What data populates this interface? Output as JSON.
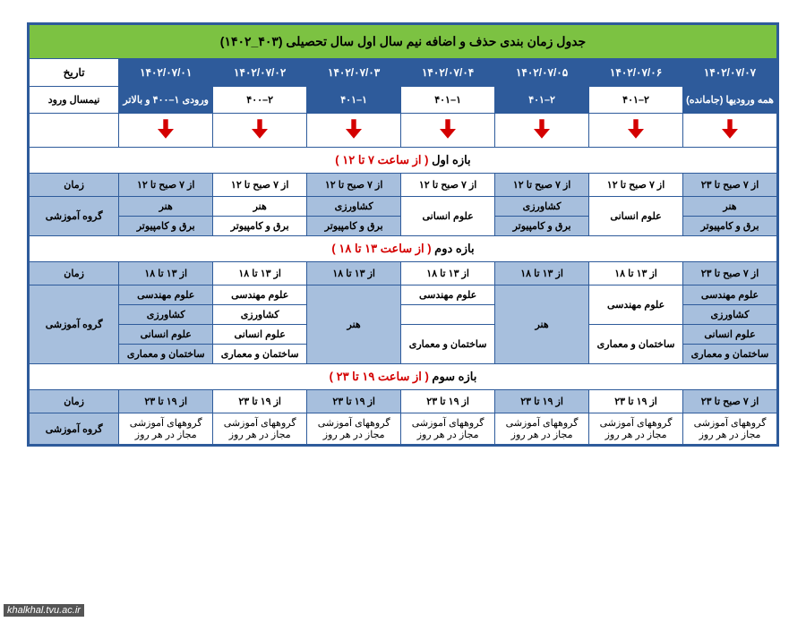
{
  "title": "جدول زمان بندی حذف و اضافه نیم سال اول سال تحصیلی (۴۰۳_۱۴۰۲)",
  "labels": {
    "date": "تاریخ",
    "entry": "نیمسال ورود",
    "time": "زمان",
    "group": "گروه آموزشی"
  },
  "dates": [
    "۱۴۰۲/۰۷/۰۱",
    "۱۴۰۲/۰۷/۰۲",
    "۱۴۰۲/۰۷/۰۳",
    "۱۴۰۲/۰۷/۰۴",
    "۱۴۰۲/۰۷/۰۵",
    "۱۴۰۲/۰۷/۰۶",
    "۱۴۰۲/۰۷/۰۷"
  ],
  "entries": [
    {
      "text": "ورودی ۱–۴۰۰ و بالاتر",
      "style": "dark"
    },
    {
      "text": "۲–۴۰۰",
      "style": "light"
    },
    {
      "text": "۱–۴۰۱",
      "style": "dark"
    },
    {
      "text": "۱–۴۰۱",
      "style": "light"
    },
    {
      "text": "۲–۴۰۱",
      "style": "dark"
    },
    {
      "text": "۲–۴۰۱",
      "style": "light"
    },
    {
      "text": "همه ورودیها (جامانده)",
      "style": "dark"
    }
  ],
  "sections": [
    {
      "header_pre": "بازه اول",
      "header_post": "( از ساعت ۷ تا ۱۲ )",
      "times": [
        "از ۷ صبح تا ۱۲",
        "از ۷ صبح تا ۱۲",
        "از ۷ صبح تا ۱۲",
        "از ۷ صبح تا ۱۲",
        "از ۷ صبح تا ۱۲",
        "از ۷ صبح تا ۱۲",
        "از ۷ صبح تا ۲۳"
      ],
      "rows": 2,
      "cells": [
        [
          {
            "t": "هنر",
            "c": "blue"
          },
          {
            "t": "هنر",
            "c": "white"
          },
          {
            "t": "کشاورزی",
            "c": "blue"
          },
          {
            "t": "علوم انسانی",
            "c": "white",
            "rs": 2
          },
          {
            "t": "کشاورزی",
            "c": "blue"
          },
          {
            "t": "علوم انسانی",
            "c": "white",
            "rs": 2
          },
          {
            "t": "هنر",
            "c": "blue"
          }
        ],
        [
          {
            "t": "برق و کامپیوتر",
            "c": "blue"
          },
          {
            "t": "برق و کامپیوتر",
            "c": "white"
          },
          {
            "t": "برق و کامپیوتر",
            "c": "blue"
          },
          {
            "t": "برق و کامپیوتر",
            "c": "blue"
          },
          {
            "t": "برق و کامپیوتر",
            "c": "blue"
          }
        ]
      ]
    },
    {
      "header_pre": "بازه دوم",
      "header_post": "( از ساعت ۱۳ تا ۱۸ )",
      "times": [
        "از ۱۳ تا ۱۸",
        "از ۱۳ تا ۱۸",
        "از ۱۳ تا ۱۸",
        "از ۱۳ تا ۱۸",
        "از ۱۳ تا ۱۸",
        "از ۱۳ تا ۱۸",
        "از ۷ صبح تا ۲۳"
      ],
      "rows": 4,
      "cells": [
        [
          {
            "t": "علوم مهندسی",
            "c": "blue"
          },
          {
            "t": "علوم مهندسی",
            "c": "white"
          },
          {
            "t": "هنر",
            "c": "blue",
            "rs": 4
          },
          {
            "t": "علوم مهندسی",
            "c": "white"
          },
          {
            "t": "هنر",
            "c": "blue",
            "rs": 4
          },
          {
            "t": "علوم مهندسی",
            "c": "white",
            "rs": 2
          },
          {
            "t": "علوم مهندسی",
            "c": "blue"
          }
        ],
        [
          {
            "t": "کشاورزی",
            "c": "blue"
          },
          {
            "t": "کشاورزی",
            "c": "white"
          },
          {
            "t": "",
            "c": "white"
          },
          {
            "t": "کشاورزی",
            "c": "blue"
          }
        ],
        [
          {
            "t": "علوم انسانی",
            "c": "blue"
          },
          {
            "t": "علوم انسانی",
            "c": "white"
          },
          {
            "t": "ساختمان و معماری",
            "c": "white",
            "rs": 2
          },
          {
            "t": "ساختمان و معماری",
            "c": "white",
            "rs": 2
          },
          {
            "t": "علوم انسانی",
            "c": "blue"
          }
        ],
        [
          {
            "t": "ساختمان و معماری",
            "c": "blue"
          },
          {
            "t": "ساختمان و معماری",
            "c": "white"
          },
          {
            "t": "ساختمان و معماری",
            "c": "blue"
          }
        ]
      ]
    },
    {
      "header_pre": "بازه سوم",
      "header_post": "( از ساعت ۱۹ تا ۲۳ )",
      "times": [
        "از ۱۹ تا ۲۳",
        "از ۱۹ تا ۲۳",
        "از ۱۹ تا ۲۳",
        "از ۱۹ تا ۲۳",
        "از ۱۹ تا ۲۳",
        "از ۱۹ تا ۲۳",
        "از ۷ صبح تا ۲۳"
      ],
      "rows": 1,
      "cells": [
        [
          {
            "t": "گروههای آموزشی مجاز در هر روز",
            "c": "white",
            "sm": true
          },
          {
            "t": "گروههای آموزشی مجاز در هر روز",
            "c": "white",
            "sm": true
          },
          {
            "t": "گروههای آموزشی مجاز در هر روز",
            "c": "white",
            "sm": true
          },
          {
            "t": "گروههای آموزشی مجاز در هر روز",
            "c": "white",
            "sm": true
          },
          {
            "t": "گروههای آموزشی مجاز در هر روز",
            "c": "white",
            "sm": true
          },
          {
            "t": "گروههای آموزشی مجاز در هر روز",
            "c": "white",
            "sm": true
          },
          {
            "t": "گروههای آموزشی مجاز در هر روز",
            "c": "white",
            "sm": true
          }
        ]
      ]
    }
  ],
  "watermark": "khalkhal.tvu.ac.ir",
  "colors": {
    "title_bg": "#7cc242",
    "header_bg": "#2e5b9b",
    "cell_blue": "#a7bfdd",
    "arrow": "#d40000",
    "border": "#2e5b9b"
  }
}
